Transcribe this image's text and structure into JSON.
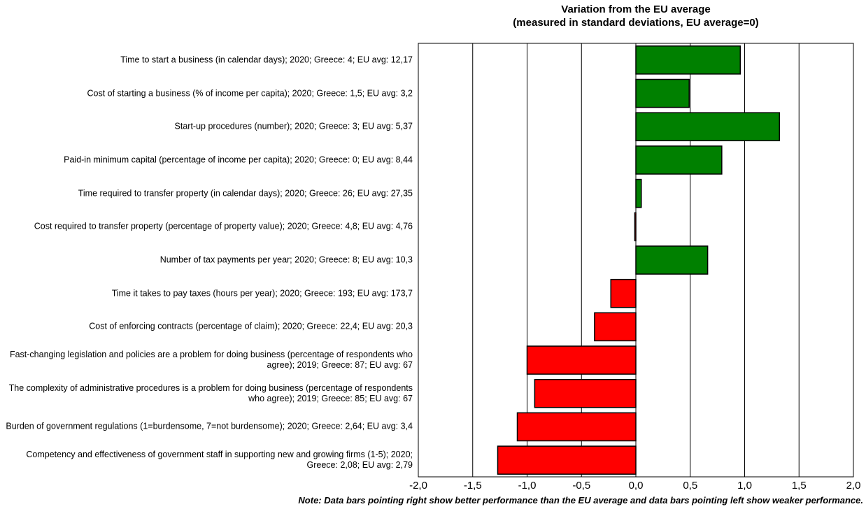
{
  "chart_data": {
    "type": "bar",
    "orientation": "horizontal",
    "title_line1": "Variation from the EU average",
    "title_line2": "(measured in standard deviations, EU average=0)",
    "xlim": [
      -2.0,
      2.0
    ],
    "x_ticks": [
      "-2,0",
      "-1,5",
      "-1,0",
      "-0,5",
      "0,0",
      "0,5",
      "1,0",
      "1,5",
      "2,0"
    ],
    "x_tick_values": [
      -2.0,
      -1.5,
      -1.0,
      -0.5,
      0.0,
      0.5,
      1.0,
      1.5,
      2.0
    ],
    "grid": true,
    "positive_color": "#008000",
    "negative_color": "#ff0000",
    "categories": [
      "Time to start a business (in calendar days); 2020; Greece: 4; EU avg: 12,17",
      "Cost of starting a business (% of income per capita); 2020; Greece: 1,5; EU avg: 3,2",
      "Start-up procedures (number); 2020; Greece: 3; EU avg: 5,37",
      "Paid-in minimum capital (percentage of income per capita); 2020; Greece: 0; EU avg: 8,44",
      "Time required to transfer property (in calendar days); 2020; Greece: 26; EU avg: 27,35",
      "Cost required to transfer property (percentage of property value); 2020; Greece: 4,8; EU avg: 4,76",
      "Number of tax payments per year; 2020; Greece: 8; EU avg: 10,3",
      "Time it takes to pay taxes (hours per year); 2020; Greece: 193; EU avg: 173,7",
      "Cost of enforcing contracts (percentage of claim); 2020; Greece: 22,4; EU avg: 20,3",
      "Fast-changing legislation and policies are a problem for doing business (percentage of respondents who agree); 2019; Greece: 87; EU avg: 67",
      "The complexity of administrative procedures is a problem for doing business (percentage of respondents who agree); 2019; Greece: 85; EU avg: 67",
      "Burden of government regulations (1=burdensome, 7=not burdensome); 2020; Greece: 2,64; EU avg: 3,4",
      "Competency and effectiveness of government staff in supporting new and growing firms (1-5); 2020; Greece: 2,08; EU avg: 2,79"
    ],
    "values": [
      0.96,
      0.49,
      1.32,
      0.79,
      0.05,
      -0.01,
      0.66,
      -0.23,
      -0.38,
      -1.0,
      -0.93,
      -1.09,
      -1.27
    ]
  },
  "note": "Note: Data bars pointing right show better performance than the EU average and data bars pointing left show weaker performance."
}
